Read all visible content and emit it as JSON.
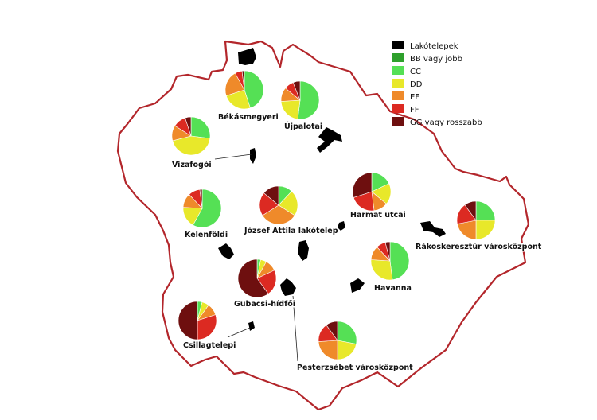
{
  "legend": {
    "items": [
      {
        "label": "Lakótelepek",
        "color": "#000000"
      },
      {
        "label": "BB vagy jobb",
        "color": "#2ea02c"
      },
      {
        "label": "CC",
        "color": "#55e055"
      },
      {
        "label": "DD",
        "color": "#e8e82a"
      },
      {
        "label": "EE",
        "color": "#ef8a2a"
      },
      {
        "label": "FF",
        "color": "#dc2a22"
      },
      {
        "label": "GG vagy rosszabb",
        "color": "#6e0f0f"
      }
    ]
  },
  "estates": [
    {
      "label": "Békásmegyeri",
      "shares": [
        0,
        0.45,
        0.25,
        0.22,
        0.06,
        0.02
      ]
    },
    {
      "label": "Újpalotai",
      "shares": [
        0,
        0.52,
        0.22,
        0.12,
        0.08,
        0.06
      ]
    },
    {
      "label": "Vizafogói",
      "shares": [
        0,
        0.27,
        0.44,
        0.13,
        0.11,
        0.05
      ]
    },
    {
      "label": "Kelenföldi",
      "shares": [
        0,
        0.58,
        0.18,
        0.12,
        0.1,
        0.02
      ]
    },
    {
      "label": "József Attila lakótelep",
      "shares": [
        0,
        0.12,
        0.22,
        0.32,
        0.2,
        0.14
      ]
    },
    {
      "label": "Harmat utcai",
      "shares": [
        0,
        0.18,
        0.18,
        0.12,
        0.22,
        0.3
      ]
    },
    {
      "label": "Rákoskeresztúr városközpont",
      "shares": [
        0,
        0.25,
        0.25,
        0.22,
        0.18,
        0.1
      ]
    },
    {
      "label": "Havanna",
      "shares": [
        0,
        0.48,
        0.28,
        0.12,
        0.08,
        0.04
      ]
    },
    {
      "label": "Gubacsi-hídfői",
      "shares": [
        0,
        0.03,
        0.05,
        0.1,
        0.22,
        0.6
      ]
    },
    {
      "label": "Csillagtelepi",
      "shares": [
        0,
        0.04,
        0.06,
        0.1,
        0.3,
        0.5
      ]
    },
    {
      "label": "Pesterzsébet városközpont",
      "shares": [
        0,
        0.28,
        0.22,
        0.24,
        0.16,
        0.1
      ]
    }
  ]
}
